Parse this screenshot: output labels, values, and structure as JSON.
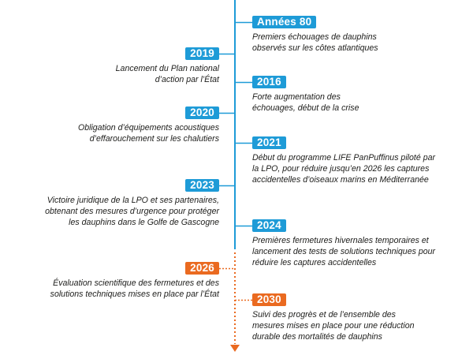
{
  "colors": {
    "past": "#1e9bd7",
    "future": "#ea6a20",
    "text": "#1d1d1b"
  },
  "events": [
    {
      "badge": "Années 80",
      "lines": [
        "Premiers échouages de dauphins",
        "observés sur les côtes atlantiques"
      ],
      "status": "past"
    },
    {
      "badge": "2019",
      "lines": [
        "Lancement du Plan national",
        "d’action par l’État"
      ],
      "status": "past"
    },
    {
      "badge": "2016",
      "lines": [
        "Forte augmentation des",
        "échouages, début de la crise"
      ],
      "status": "past"
    },
    {
      "badge": "2020",
      "lines": [
        "Obligation d’équipements acoustiques",
        "d’effarouchement sur les chalutiers"
      ],
      "status": "past"
    },
    {
      "badge": "2021",
      "lines": [
        "Début du programme LIFE PanPuffinus piloté par",
        "la LPO, pour réduire jusqu’en 2026 les captures",
        "accidentelles d’oiseaux marins en Méditerranée"
      ],
      "status": "past"
    },
    {
      "badge": "2023",
      "lines": [
        "Victoire juridique de la LPO et ses partenaires,",
        "obtenant des mesures d’urgence pour protéger",
        "les dauphins dans le Golfe de Gascogne"
      ],
      "status": "past"
    },
    {
      "badge": "2024",
      "lines": [
        "Premières fermetures hivernales temporaires et",
        "lancement des tests de solutions techniques pour",
        "réduire les captures accidentelles"
      ],
      "status": "past"
    },
    {
      "badge": "2026",
      "lines": [
        "Évaluation scientifique des fermetures et des",
        "solutions techniques mises en place par l’État"
      ],
      "status": "future"
    },
    {
      "badge": "2030",
      "lines": [
        "Suivi des progrès et de l’ensemble des",
        "mesures mises en place pour une réduction",
        "durable des mortalités de dauphins"
      ],
      "status": "future"
    }
  ]
}
